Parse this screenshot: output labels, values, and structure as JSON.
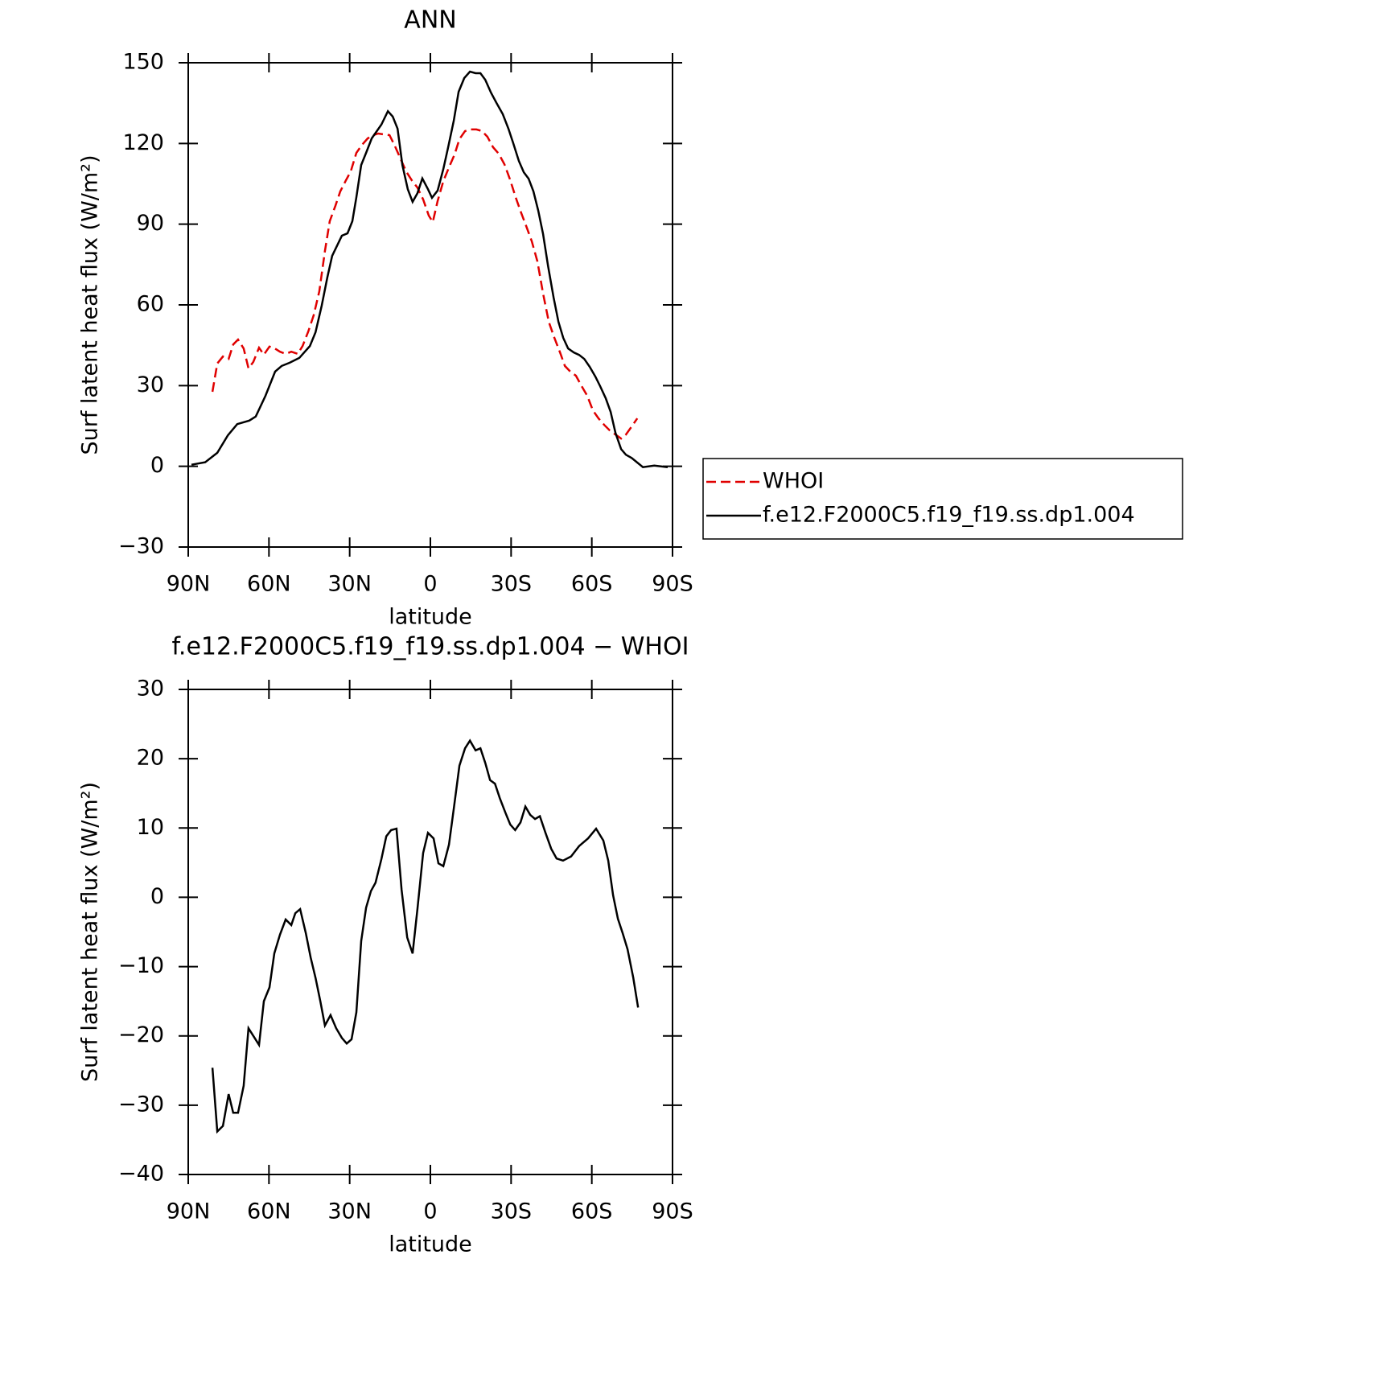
{
  "chart_data": [
    {
      "type": "line",
      "title": "ANN",
      "xlabel": "latitude",
      "ylabel": "Surf latent heat flux (W/m²)",
      "xlim": [
        90,
        -90
      ],
      "xticks": [
        {
          "value": 90,
          "label": "90N"
        },
        {
          "value": 60,
          "label": "60N"
        },
        {
          "value": 30,
          "label": "30N"
        },
        0,
        {
          "value": -30,
          "label": "30S"
        },
        {
          "value": -60,
          "label": "60S"
        },
        {
          "value": -90,
          "label": "90S"
        }
      ],
      "ylim": [
        -30,
        150
      ],
      "yticks": [
        {
          "value": -30,
          "label": "−30"
        },
        0,
        30,
        60,
        90,
        120,
        150
      ],
      "legend": "right",
      "series": [
        {
          "name": "WHOI",
          "color": "#e00000",
          "linestyle": "dashed",
          "x": [
            81.0,
            79.2,
            77.1,
            75.0,
            73.3,
            71.5,
            69.4,
            67.6,
            65.8,
            63.7,
            61.9,
            59.8,
            58.0,
            55.9,
            53.8,
            51.7,
            49.3,
            47.5,
            45.4,
            43.4,
            41.3,
            39.2,
            37.4,
            35.3,
            33.5,
            31.4,
            29.6,
            27.5,
            25.4,
            23.3,
            21.2,
            19.4,
            17.3,
            15.2,
            13.4,
            11.4,
            9.0,
            6.9,
            4.8,
            2.7,
            0.6,
            -0.9,
            -2.7,
            -4.8,
            -6.9,
            -9.0,
            -10.8,
            -12.9,
            -15.0,
            -17.1,
            -19.2,
            -21.2,
            -23.3,
            -25.4,
            -27.5,
            -29.6,
            -31.7,
            -33.8,
            -35.6,
            -37.7,
            -39.8,
            -41.9,
            -44.0,
            -46.1,
            -48.2,
            -50.0,
            -52.0,
            -54.1,
            -56.2,
            -58.3,
            -60.4,
            -62.5,
            -64.6,
            -66.7,
            -68.8,
            -70.9,
            -72.7,
            -74.8,
            -76.9
          ],
          "values": [
            27.7,
            38.2,
            40.8,
            39.9,
            45.3,
            47.1,
            43.8,
            36.4,
            38.8,
            44.1,
            41.5,
            44.5,
            43.9,
            42.6,
            41.8,
            42.6,
            41.8,
            44.7,
            50.1,
            56.1,
            65.0,
            80.0,
            91.1,
            96.8,
            102.2,
            106.3,
            109.6,
            116.5,
            119.5,
            121.9,
            123.1,
            123.7,
            123.4,
            123.1,
            119.5,
            115.0,
            109.6,
            106.3,
            103.6,
            99.2,
            93.2,
            90.8,
            98.6,
            106.0,
            111.1,
            115.9,
            121.6,
            124.6,
            125.2,
            125.2,
            124.6,
            122.5,
            118.6,
            116.2,
            112.3,
            106.6,
            100.0,
            94.1,
            89.3,
            83.6,
            76.1,
            64.2,
            53.7,
            47.7,
            42.3,
            37.3,
            35.2,
            33.7,
            29.8,
            26.2,
            20.8,
            17.8,
            15.4,
            13.3,
            11.8,
            10.3,
            11.8,
            14.8,
            17.8
          ]
        },
        {
          "name": "f.e12.F2000C5.f19_f19.ss.dp1.004",
          "color": "#000000",
          "linestyle": "solid",
          "x": [
            88.8,
            83.7,
            79.2,
            75.3,
            71.8,
            67.3,
            64.9,
            61.3,
            57.7,
            55.3,
            52.3,
            48.7,
            44.8,
            42.7,
            40.4,
            38.3,
            36.5,
            32.9,
            30.8,
            29.0,
            27.5,
            25.7,
            23.9,
            21.8,
            18.2,
            15.8,
            14.0,
            12.2,
            10.4,
            8.4,
            6.6,
            4.8,
            3.0,
            0.9,
            -0.6,
            -2.7,
            -4.8,
            -6.6,
            -8.7,
            -10.5,
            -12.6,
            -14.7,
            -16.8,
            -18.6,
            -20.4,
            -22.5,
            -24.6,
            -26.9,
            -29.0,
            -30.8,
            -32.9,
            -34.7,
            -36.5,
            -38.3,
            -40.1,
            -41.9,
            -43.7,
            -45.8,
            -47.6,
            -49.4,
            -51.2,
            -53.3,
            -55.3,
            -57.2,
            -59.2,
            -61.3,
            -63.1,
            -65.2,
            -67.0,
            -68.8,
            -70.9,
            -72.7,
            -74.8,
            -76.9,
            -79.0,
            -83.2,
            -88.2
          ],
          "values": [
            0.6,
            1.5,
            5.0,
            11.5,
            15.7,
            17.0,
            18.5,
            26.2,
            35.2,
            37.3,
            38.5,
            40.3,
            44.7,
            49.8,
            59.7,
            70.2,
            78.2,
            85.7,
            86.6,
            91.1,
            100.0,
            112.0,
            116.5,
            121.9,
            127.0,
            132.0,
            130.0,
            125.5,
            112.0,
            103.0,
            98.3,
            101.5,
            107.0,
            103.0,
            99.8,
            102.5,
            110.5,
            118.6,
            128.5,
            139.2,
            144.3,
            146.7,
            146.1,
            146.1,
            143.7,
            138.9,
            135.0,
            130.9,
            125.5,
            120.1,
            113.5,
            109.3,
            106.9,
            102.2,
            95.0,
            86.3,
            74.6,
            62.7,
            53.7,
            47.7,
            43.8,
            42.3,
            41.4,
            39.9,
            37.0,
            33.4,
            29.8,
            25.2,
            20.2,
            12.4,
            6.4,
            4.3,
            3.1,
            1.4,
            -0.3,
            0.3,
            -0.3
          ]
        }
      ]
    },
    {
      "type": "line",
      "title": "f.e12.F2000C5.f19_f19.ss.dp1.004 − WHOI",
      "xlabel": "latitude",
      "ylabel": "Surf latent heat flux (W/m²)",
      "xlim": [
        90,
        -90
      ],
      "xticks": [
        {
          "value": 90,
          "label": "90N"
        },
        {
          "value": 60,
          "label": "60N"
        },
        {
          "value": 30,
          "label": "30N"
        },
        0,
        {
          "value": -30,
          "label": "30S"
        },
        {
          "value": -60,
          "label": "60S"
        },
        {
          "value": -90,
          "label": "90S"
        }
      ],
      "ylim": [
        -40,
        30
      ],
      "yticks": [
        {
          "value": -40,
          "label": "−40"
        },
        {
          "value": -30,
          "label": "−30"
        },
        {
          "value": -20,
          "label": "−20"
        },
        {
          "value": -10,
          "label": "−10"
        },
        0,
        10,
        20,
        30
      ],
      "series": [
        {
          "color": "#000000",
          "linestyle": "solid",
          "x": [
            81.0,
            79.2,
            77.1,
            75.0,
            73.3,
            71.5,
            69.4,
            67.6,
            65.8,
            63.7,
            61.9,
            59.8,
            58.0,
            55.9,
            53.8,
            51.7,
            50.2,
            48.4,
            46.3,
            44.5,
            42.7,
            40.9,
            39.2,
            37.1,
            35.0,
            32.9,
            31.1,
            29.3,
            27.5,
            25.7,
            23.9,
            22.1,
            20.4,
            18.2,
            16.4,
            14.6,
            12.6,
            10.7,
            8.6,
            6.6,
            4.8,
            2.7,
            0.9,
            -1.2,
            -3.0,
            -4.8,
            -6.9,
            -8.7,
            -10.8,
            -12.9,
            -14.7,
            -16.8,
            -18.6,
            -20.4,
            -22.2,
            -24.0,
            -25.8,
            -27.9,
            -29.7,
            -31.5,
            -33.5,
            -35.3,
            -37.1,
            -38.9,
            -40.7,
            -42.8,
            -44.9,
            -46.9,
            -49.3,
            -52.3,
            -55.3,
            -58.6,
            -61.6,
            -64.3,
            -66.1,
            -67.9,
            -69.7,
            -71.5,
            -73.3,
            -75.4,
            -77.2
          ],
          "values": [
            -24.6,
            -33.8,
            -33.0,
            -28.4,
            -31.1,
            -31.1,
            -27.2,
            -18.9,
            -20.0,
            -21.3,
            -15.0,
            -13.0,
            -8.1,
            -5.4,
            -3.2,
            -4.0,
            -2.3,
            -1.7,
            -5.2,
            -8.7,
            -11.6,
            -15.0,
            -18.5,
            -17.0,
            -18.9,
            -20.3,
            -21.1,
            -20.5,
            -16.6,
            -6.3,
            -1.5,
            0.9,
            2.1,
            5.5,
            8.8,
            9.7,
            9.9,
            1.1,
            -5.8,
            -8.1,
            -1.7,
            6.4,
            9.3,
            8.5,
            4.9,
            4.5,
            7.6,
            12.8,
            19.0,
            21.5,
            22.6,
            21.2,
            21.5,
            19.4,
            16.9,
            16.4,
            14.3,
            12.2,
            10.5,
            9.7,
            10.8,
            13.1,
            11.9,
            11.3,
            11.7,
            9.3,
            7.0,
            5.6,
            5.3,
            5.9,
            7.4,
            8.5,
            9.9,
            8.2,
            5.3,
            0.3,
            -3.1,
            -5.2,
            -7.5,
            -11.6,
            -15.9
          ]
        }
      ]
    }
  ]
}
